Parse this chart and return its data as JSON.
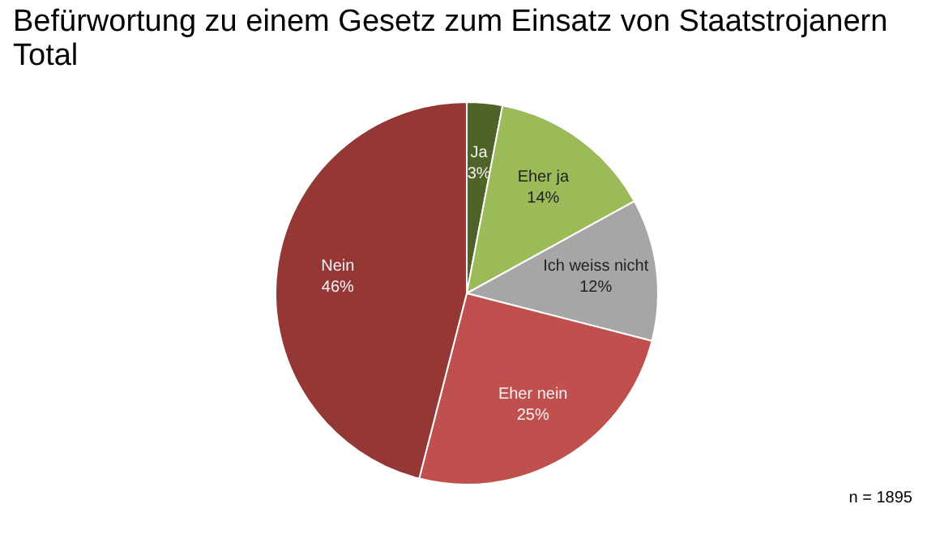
{
  "chart_data": {
    "type": "pie",
    "title": "Befürwortung zu einem Gesetz zum Einsatz von Staatstrojanern",
    "subtitle": "Total",
    "categories": [
      "Ja",
      "Eher ja",
      "Ich weiss nicht",
      "Eher nein",
      "Nein"
    ],
    "values": [
      3,
      14,
      12,
      25,
      46
    ],
    "value_labels": [
      "3%",
      "14%",
      "12%",
      "25%",
      "46%"
    ],
    "colors": [
      "#4f6228",
      "#9bbb59",
      "#a6a6a6",
      "#c0504d",
      "#953735"
    ],
    "annotations": [
      "n = 1895"
    ],
    "legend": false
  }
}
